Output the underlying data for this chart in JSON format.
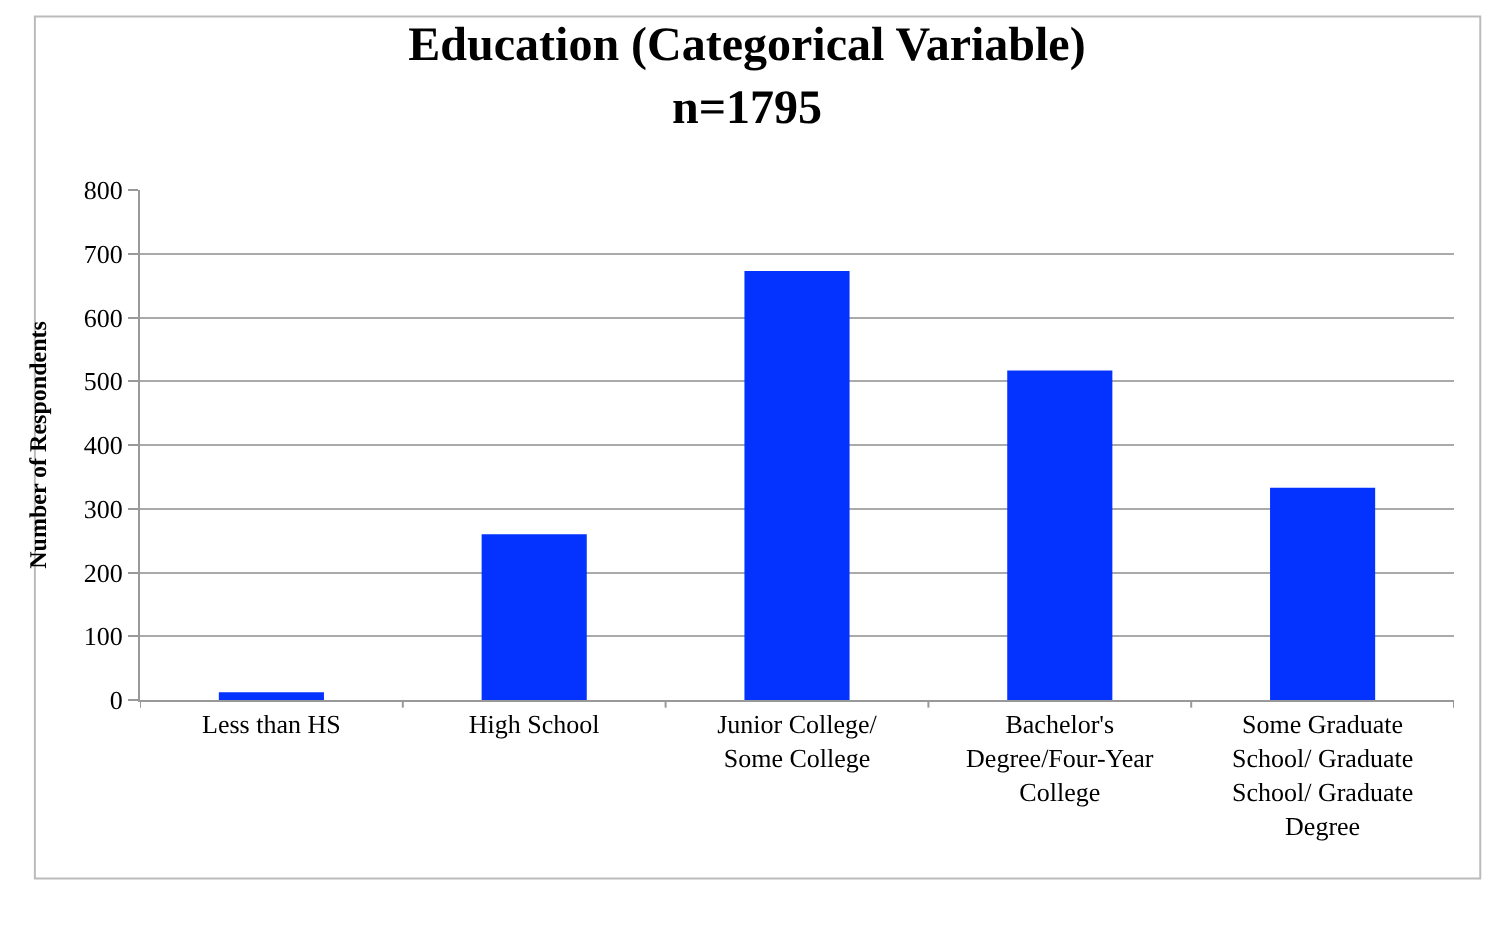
{
  "chart_data": {
    "type": "bar",
    "title": "Education (Categorical Variable)\nn=1795",
    "ylabel": "Number of Respondents",
    "categories": [
      "Less than HS",
      "High School",
      "Junior College/\nSome College",
      "Bachelor's\nDegree/Four-Year\nCollege",
      "Some Graduate\nSchool/ Graduate\nSchool/ Graduate\nDegree"
    ],
    "values": [
      12,
      260,
      673,
      517,
      333
    ],
    "color": "#0433ff",
    "ylim": [
      0,
      800
    ],
    "yticks": [
      0,
      100,
      200,
      300,
      400,
      500,
      600,
      700,
      800
    ],
    "grid": "y"
  }
}
